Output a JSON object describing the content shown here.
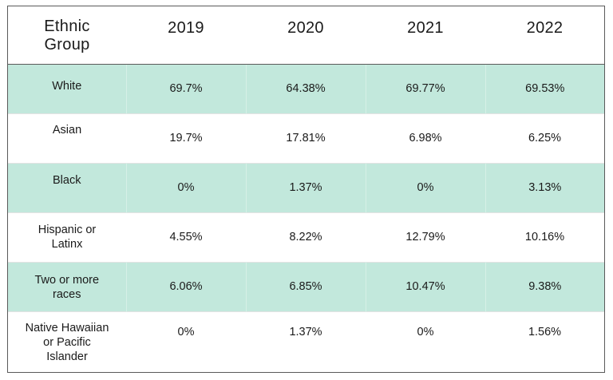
{
  "table": {
    "headers": [
      "Ethnic Group",
      "2019",
      "2020",
      "2021",
      "2022"
    ],
    "rows": [
      {
        "group": "White",
        "values": [
          "69.7%",
          "64.38%",
          "69.77%",
          "69.53%"
        ],
        "shaded": true
      },
      {
        "group": "Asian",
        "values": [
          "19.7%",
          "17.81%",
          "6.98%",
          "6.25%"
        ],
        "shaded": false
      },
      {
        "group": "Black",
        "values": [
          "0%",
          "1.37%",
          "0%",
          "3.13%"
        ],
        "shaded": true
      },
      {
        "group": "Hispanic or Latinx",
        "values": [
          "4.55%",
          "8.22%",
          "12.79%",
          "10.16%"
        ],
        "shaded": false
      },
      {
        "group": "Two or more races",
        "values": [
          "6.06%",
          "6.85%",
          "10.47%",
          "9.38%"
        ],
        "shaded": true
      },
      {
        "group": "Native Hawaiian or Pacific Islander",
        "values": [
          "0%",
          "1.37%",
          "0%",
          "1.56%"
        ],
        "shaded": false
      }
    ]
  },
  "colors": {
    "shaded_row": "#c2e8dc",
    "border": "#5a5a5a"
  }
}
